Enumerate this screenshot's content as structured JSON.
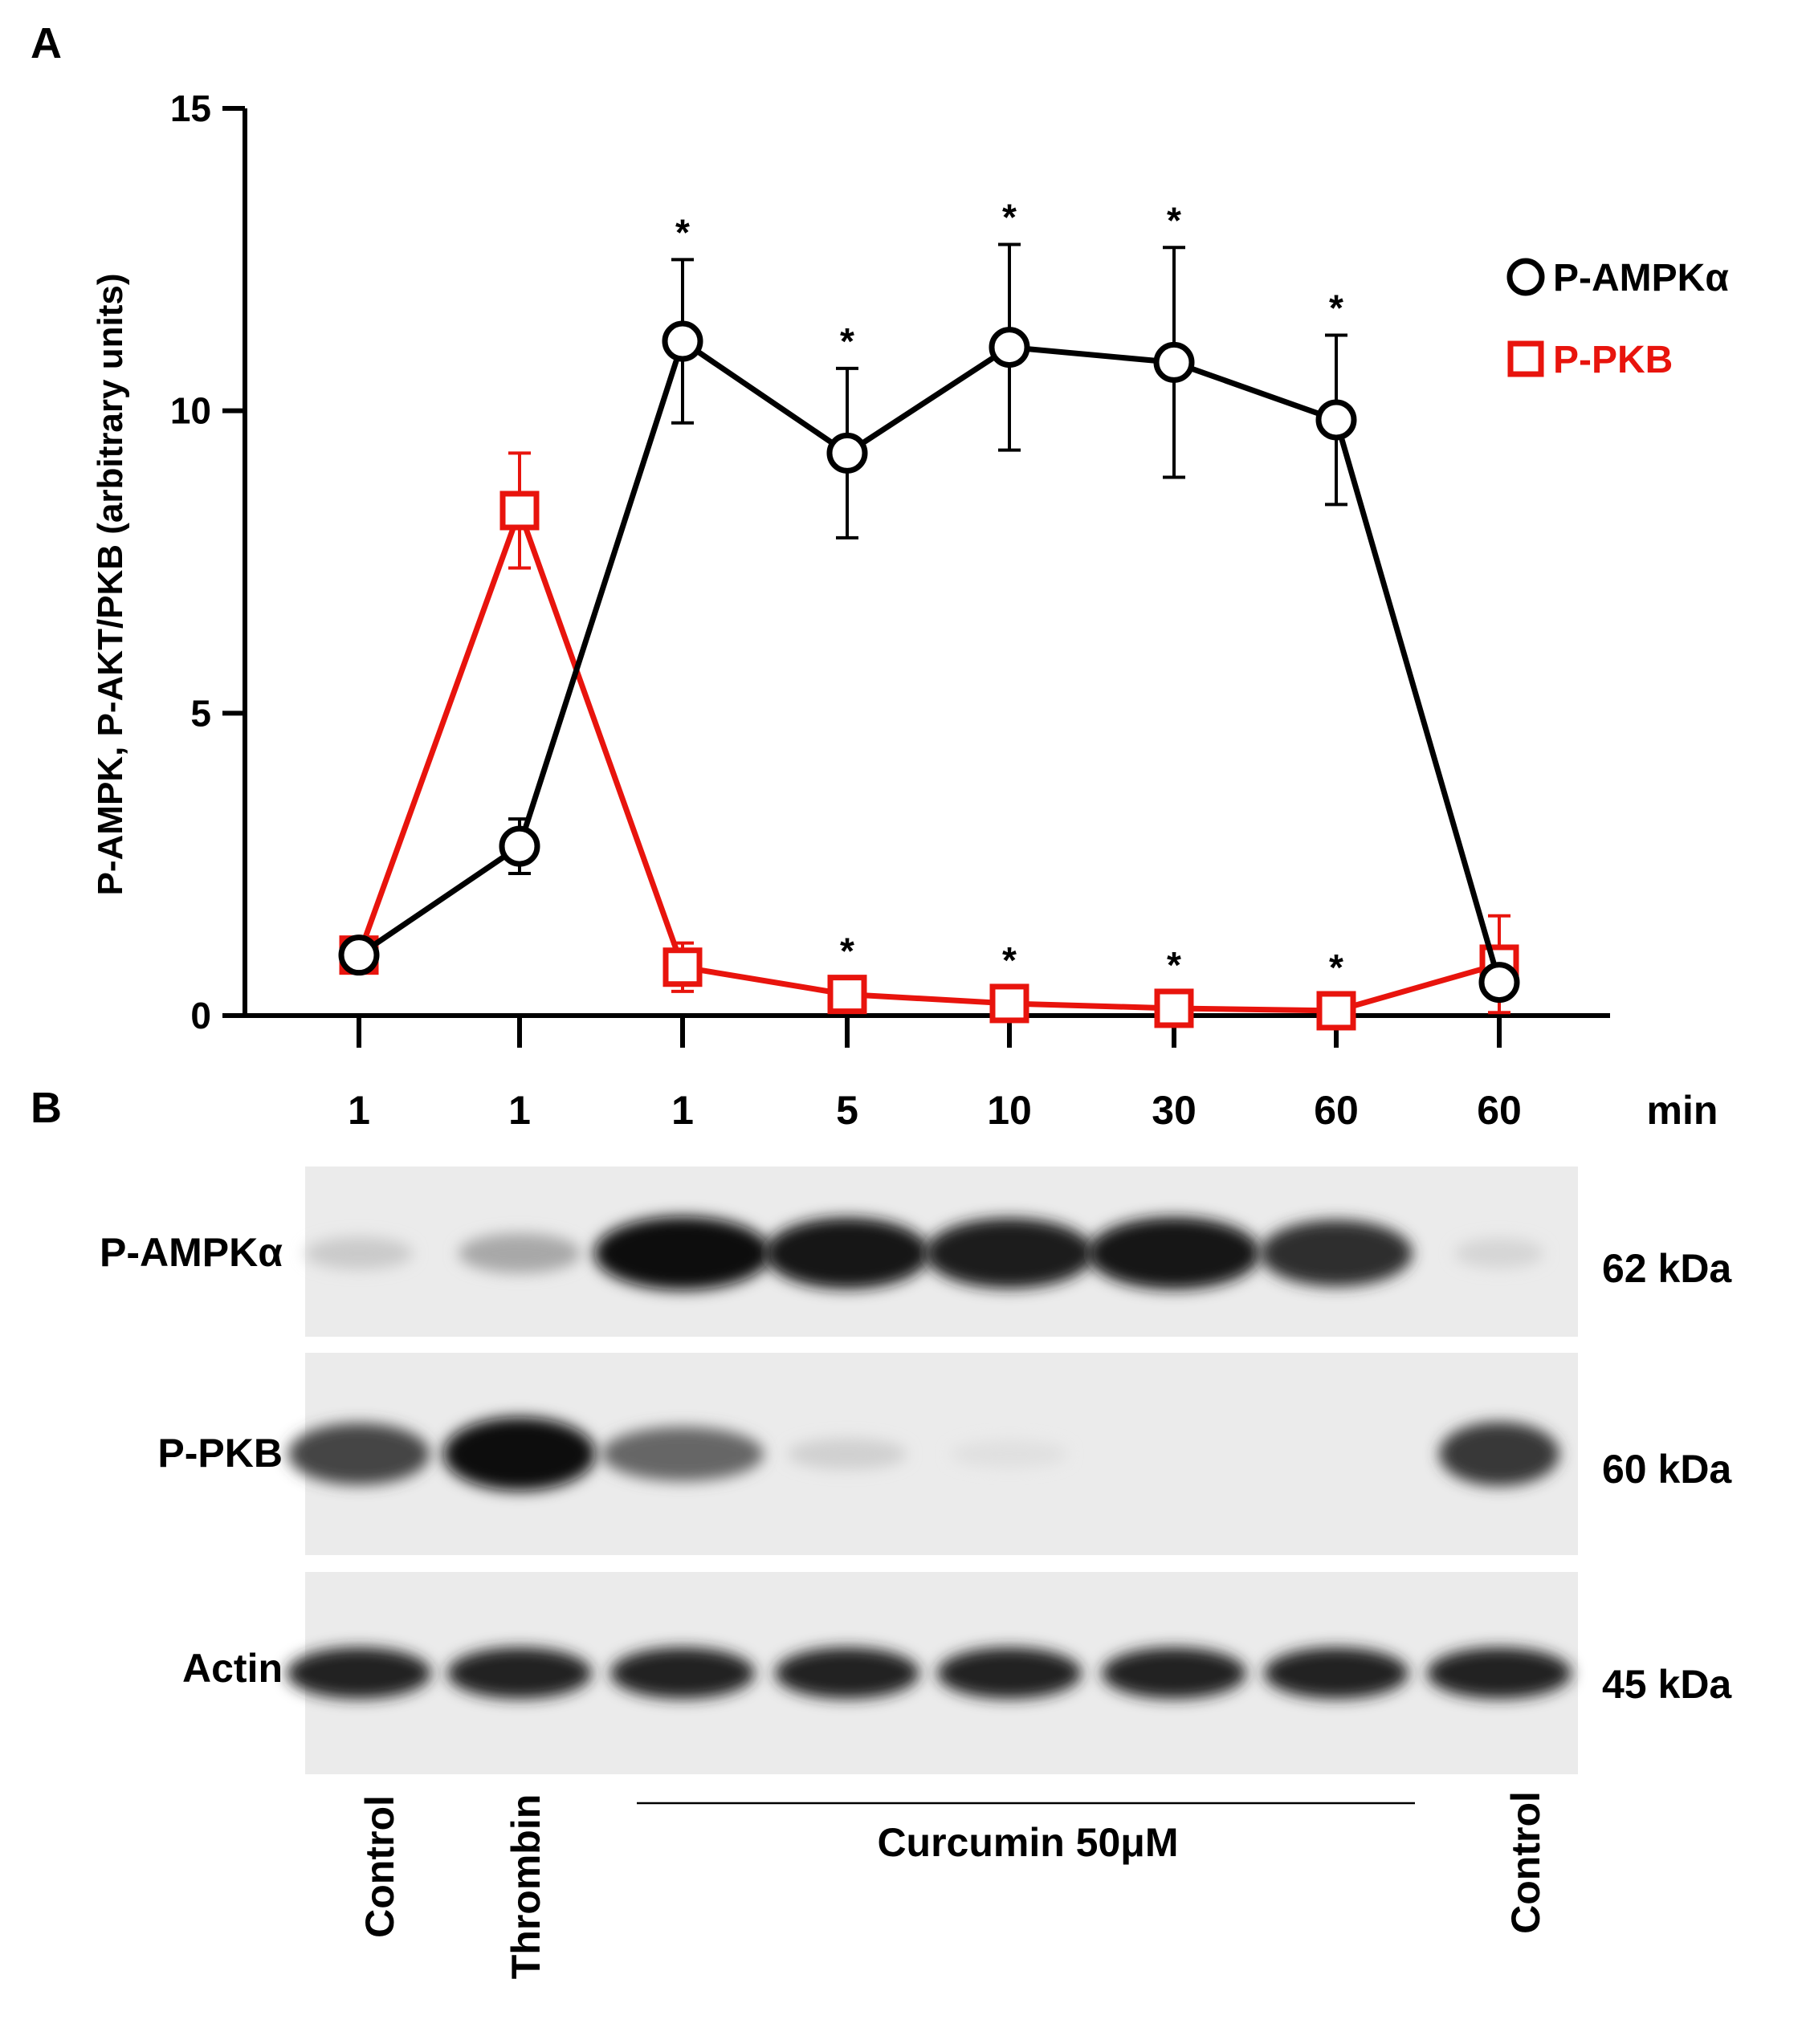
{
  "panel_labels": {
    "a": "A",
    "b": "B"
  },
  "chart_data": {
    "type": "line",
    "ylabel": "P-AMPK, P-AKT/PKB (arbitrary units)",
    "ylim": [
      0,
      15
    ],
    "yticks": [
      "0",
      "5",
      "10",
      "15"
    ],
    "categories": [
      "1",
      "1",
      "1",
      "5",
      "10",
      "30",
      "60",
      "60"
    ],
    "x_unit": "min",
    "legend_position": "top-right",
    "series": [
      {
        "name": "P-AMPKα",
        "marker": "circle",
        "color": "#000000",
        "values": [
          1.0,
          2.8,
          11.15,
          9.3,
          11.05,
          10.8,
          9.85,
          0.55
        ],
        "error": [
          0.0,
          0.45,
          1.35,
          1.4,
          1.7,
          1.9,
          1.4,
          0.0
        ],
        "significant": [
          false,
          false,
          true,
          true,
          true,
          true,
          true,
          false
        ]
      },
      {
        "name": "P-PKB",
        "marker": "square",
        "color": "#e8140d",
        "values": [
          1.0,
          8.35,
          0.8,
          0.35,
          0.2,
          0.12,
          0.08,
          0.85
        ],
        "error": [
          0.0,
          0.95,
          0.4,
          0.0,
          0.0,
          0.0,
          0.0,
          0.8
        ],
        "significant": [
          false,
          false,
          false,
          true,
          true,
          true,
          true,
          false
        ]
      }
    ],
    "significance_marker": "*"
  },
  "blot": {
    "rows": [
      {
        "protein": "P-AMPKα",
        "size": "62 kDa",
        "intensity": [
          0.15,
          0.3,
          1.0,
          0.95,
          0.93,
          0.97,
          0.85,
          0.1
        ]
      },
      {
        "protein": "P-PKB",
        "size": "60 kDa",
        "intensity": [
          0.75,
          1.0,
          0.6,
          0.12,
          0.05,
          0.0,
          0.0,
          0.8
        ]
      },
      {
        "protein": "Actin",
        "size": "45 kDa",
        "intensity": [
          0.9,
          0.9,
          0.9,
          0.9,
          0.9,
          0.9,
          0.9,
          0.9
        ]
      }
    ],
    "treatments": {
      "control_left": "Control",
      "thrombin": "Thrombin",
      "curcumin": "Curcumin 50μM",
      "control_right": "Control"
    }
  }
}
